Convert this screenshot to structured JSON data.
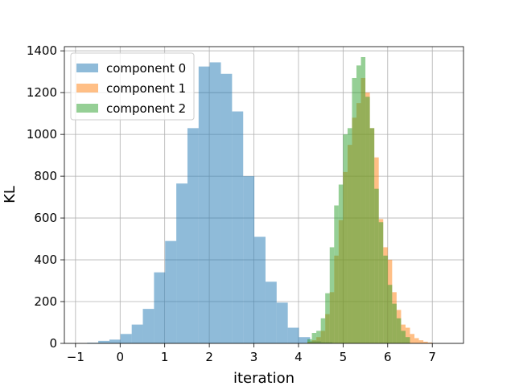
{
  "chart_data": {
    "type": "histogram",
    "title": "",
    "xlabel": "iteration",
    "ylabel": "KL",
    "xlim": [
      -1.25,
      7.7
    ],
    "ylim": [
      0,
      1420
    ],
    "xticks": [
      -1,
      0,
      1,
      2,
      3,
      4,
      5,
      6,
      7
    ],
    "yticks": [
      0,
      200,
      400,
      600,
      800,
      1000,
      1200,
      1400
    ],
    "grid": true,
    "legend_position": "top-left",
    "series": [
      {
        "name": "component 0",
        "color": "#1f77b4",
        "alpha": 0.5,
        "bin_edges": [
          -0.74,
          -0.49,
          -0.24,
          0.01,
          0.26,
          0.51,
          0.76,
          1.01,
          1.26,
          1.51,
          1.76,
          2.01,
          2.26,
          2.51,
          2.76,
          3.01,
          3.26,
          3.51,
          3.76,
          4.01,
          4.26,
          4.51,
          4.76
        ],
        "counts": [
          3,
          12,
          18,
          45,
          90,
          165,
          340,
          490,
          765,
          1030,
          1325,
          1345,
          1290,
          1110,
          800,
          510,
          295,
          195,
          75,
          30,
          10,
          5
        ]
      },
      {
        "name": "component 1",
        "color": "#ff7f0e",
        "alpha": 0.5,
        "bin_edges": [
          4.2,
          4.3,
          4.4,
          4.5,
          4.6,
          4.7,
          4.8,
          4.9,
          5.0,
          5.1,
          5.2,
          5.3,
          5.4,
          5.5,
          5.6,
          5.7,
          5.8,
          5.9,
          6.0,
          6.1,
          6.2,
          6.3,
          6.4,
          6.5,
          6.6,
          6.7,
          6.8,
          6.9,
          7.0
        ],
        "counts": [
          8,
          15,
          30,
          60,
          140,
          245,
          420,
          590,
          820,
          950,
          1080,
          1150,
          1270,
          1200,
          1030,
          890,
          595,
          460,
          400,
          245,
          160,
          90,
          75,
          45,
          25,
          15,
          8,
          4
        ]
      },
      {
        "name": "component 2",
        "color": "#2ca02c",
        "alpha": 0.5,
        "bin_edges": [
          4.2,
          4.3,
          4.4,
          4.5,
          4.6,
          4.7,
          4.8,
          4.9,
          5.0,
          5.1,
          5.2,
          5.3,
          5.4,
          5.5,
          5.6,
          5.7,
          5.8,
          5.9,
          6.0,
          6.1,
          6.2,
          6.3,
          6.4,
          6.5
        ],
        "counts": [
          20,
          50,
          60,
          120,
          240,
          460,
          660,
          760,
          1000,
          1030,
          1270,
          1330,
          1370,
          1180,
          1030,
          740,
          580,
          420,
          280,
          190,
          120,
          60,
          30
        ]
      }
    ]
  }
}
